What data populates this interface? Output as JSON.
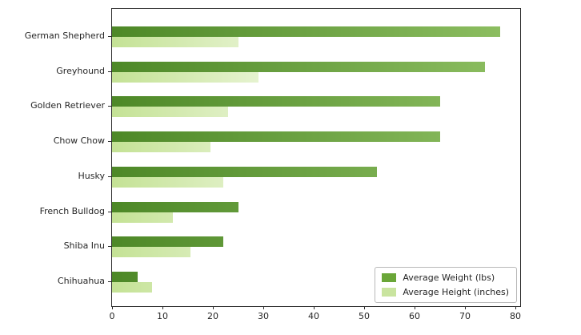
{
  "chart_data": {
    "type": "bar",
    "orientation": "horizontal",
    "title": "",
    "xlabel": "",
    "ylabel": "",
    "categories": [
      "German Shepherd",
      "Greyhound",
      "Golden Retriever",
      "Chow Chow",
      "Husky",
      "French Bulldog",
      "Shiba Inu",
      "Chihuahua"
    ],
    "series": [
      {
        "name": "Average Weight (lbs)",
        "values": [
          77,
          74,
          65,
          65,
          52.5,
          25,
          22,
          5
        ],
        "legend_swatch_color": "#6aa638",
        "gradient_stops": [
          [
            "#4d8827",
            "0px"
          ],
          [
            "#8fc063",
            "510px"
          ]
        ]
      },
      {
        "name": "Average Height (inches)",
        "values": [
          25,
          29,
          23,
          19.5,
          22,
          12,
          15.5,
          8
        ],
        "legend_swatch_color": "#c9e49f",
        "gradient_stops": [
          [
            "#c4e295",
            "0px"
          ],
          [
            "#f2f9e5",
            "250px"
          ],
          [
            "#f7fbef",
            "510px"
          ]
        ]
      }
    ],
    "xlim": [
      0,
      80.95
    ],
    "xticks": [
      0,
      10,
      20,
      30,
      40,
      50,
      60,
      70,
      80
    ],
    "grid": false,
    "legend_position": "lower right"
  },
  "axes": {
    "spine_color": "#2b2b2b",
    "tick_color": "#2b2b2b",
    "text_color": "#262626",
    "background": "#ffffff"
  }
}
